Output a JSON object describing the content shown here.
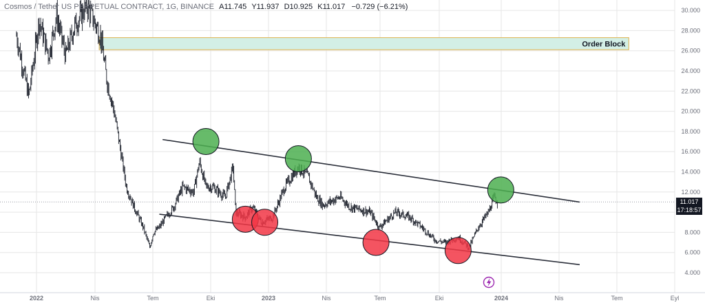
{
  "header": {
    "symbol": "Cosmos / Tether US PERPETUAL CONTRACT, 1G, BINANCE",
    "open_label": "A",
    "open": "11.745",
    "high_label": "Y",
    "high": "11.937",
    "low_label": "D",
    "low": "10.925",
    "close_label": "K",
    "close": "11.017",
    "change": "−0.729 (−6.21%)"
  },
  "price_tag": {
    "price": "11.017",
    "countdown": "17:18:57"
  },
  "annotations": {
    "order_block": "Order Block"
  },
  "colors": {
    "candle": "#131722",
    "channel": "#2a2e39",
    "order_block_fill": "#d3efe6",
    "order_block_border": "#e0b04a",
    "green_circle": "#4caf50",
    "red_circle": "#f23645",
    "grid": "#e6e6e6",
    "lightning": "#9c27b0"
  },
  "icons": {
    "lightning": "lightning-icon"
  },
  "chart_data": {
    "type": "candlestick",
    "title": "Cosmos / Tether US PERPETUAL CONTRACT, 1G, BINANCE",
    "x_ticks": [
      "2022",
      "Nis",
      "Tem",
      "Eki",
      "2023",
      "Nis",
      "Tem",
      "Eki",
      "2024",
      "Nis",
      "Tem",
      "Eyl"
    ],
    "y_ticks": [
      "4.000",
      "6.000",
      "8.000",
      "10.000",
      "12.000",
      "14.000",
      "16.000",
      "18.000",
      "20.000",
      "22.000",
      "24.000",
      "26.000",
      "28.000",
      "30.000"
    ],
    "ylim": [
      4,
      30.5
    ],
    "price_path": [
      [
        "2021-12-01",
        27.5
      ],
      [
        "2021-12-20",
        21.5
      ],
      [
        "2022-01-05",
        29
      ],
      [
        "2022-01-20",
        25.5
      ],
      [
        "2022-02-01",
        29.5
      ],
      [
        "2022-02-15",
        25.5
      ],
      [
        "2022-03-01",
        28.5
      ],
      [
        "2022-03-20",
        30.5
      ],
      [
        "2022-04-10",
        27.5
      ],
      [
        "2022-04-20",
        23
      ],
      [
        "2022-05-01",
        20
      ],
      [
        "2022-05-10",
        16.5
      ],
      [
        "2022-05-20",
        12.5
      ],
      [
        "2022-06-01",
        10.5
      ],
      [
        "2022-06-15",
        8.5
      ],
      [
        "2022-06-25",
        6.5
      ],
      [
        "2022-07-01",
        8
      ],
      [
        "2022-07-10",
        8.5
      ],
      [
        "2022-07-20",
        9.5
      ],
      [
        "2022-08-01",
        10.5
      ],
      [
        "2022-08-15",
        12.5
      ],
      [
        "2022-09-01",
        12
      ],
      [
        "2022-09-10",
        15
      ],
      [
        "2022-09-20",
        12.5
      ],
      [
        "2022-10-01",
        12.5
      ],
      [
        "2022-10-10",
        12
      ],
      [
        "2022-10-20",
        11.5
      ],
      [
        "2022-11-01",
        14.5
      ],
      [
        "2022-11-05",
        10
      ],
      [
        "2022-11-20",
        9.5
      ],
      [
        "2022-12-01",
        10.5
      ],
      [
        "2022-12-15",
        9
      ],
      [
        "2023-01-01",
        9.5
      ],
      [
        "2023-01-20",
        12.5
      ],
      [
        "2023-02-10",
        14.5
      ],
      [
        "2023-02-25",
        13.5
      ],
      [
        "2023-03-10",
        11.5
      ],
      [
        "2023-03-20",
        10.7
      ],
      [
        "2023-04-15",
        11.5
      ],
      [
        "2023-05-01",
        10.5
      ],
      [
        "2023-06-01",
        10
      ],
      [
        "2023-06-15",
        8.5
      ],
      [
        "2023-07-10",
        10
      ],
      [
        "2023-08-01",
        9.5
      ],
      [
        "2023-08-20",
        8.5
      ],
      [
        "2023-09-10",
        7.2
      ],
      [
        "2023-09-25",
        7
      ],
      [
        "2023-10-15",
        7.5
      ],
      [
        "2023-11-01",
        6.5
      ],
      [
        "2023-11-15",
        8.5
      ],
      [
        "2023-12-01",
        10
      ],
      [
        "2023-12-10",
        11.5
      ],
      [
        "2023-12-15",
        11
      ]
    ],
    "order_block": {
      "from": "2022-04-08",
      "to": "2024-07-05",
      "low": 26.1,
      "high": 27.3,
      "label": "Order Block"
    },
    "channel_upper": [
      [
        "2022-07-15",
        17.2
      ],
      [
        "2024-04-20",
        11.0
      ]
    ],
    "channel_lower": [
      [
        "2022-07-10",
        9.8
      ],
      [
        "2024-04-20",
        4.8
      ]
    ],
    "touch_points": [
      {
        "date": "2022-09-20",
        "price": 17.0,
        "type": "resistance",
        "color": "green"
      },
      {
        "date": "2022-11-20",
        "price": 9.3,
        "type": "support",
        "color": "red"
      },
      {
        "date": "2022-12-20",
        "price": 9.0,
        "type": "support",
        "color": "red"
      },
      {
        "date": "2023-02-10",
        "price": 15.3,
        "type": "resistance",
        "color": "green"
      },
      {
        "date": "2023-06-10",
        "price": 7.0,
        "type": "support",
        "color": "red"
      },
      {
        "date": "2023-10-15",
        "price": 6.2,
        "type": "support",
        "color": "red"
      },
      {
        "date": "2023-12-20",
        "price": 12.2,
        "type": "resistance",
        "color": "green"
      }
    ]
  }
}
